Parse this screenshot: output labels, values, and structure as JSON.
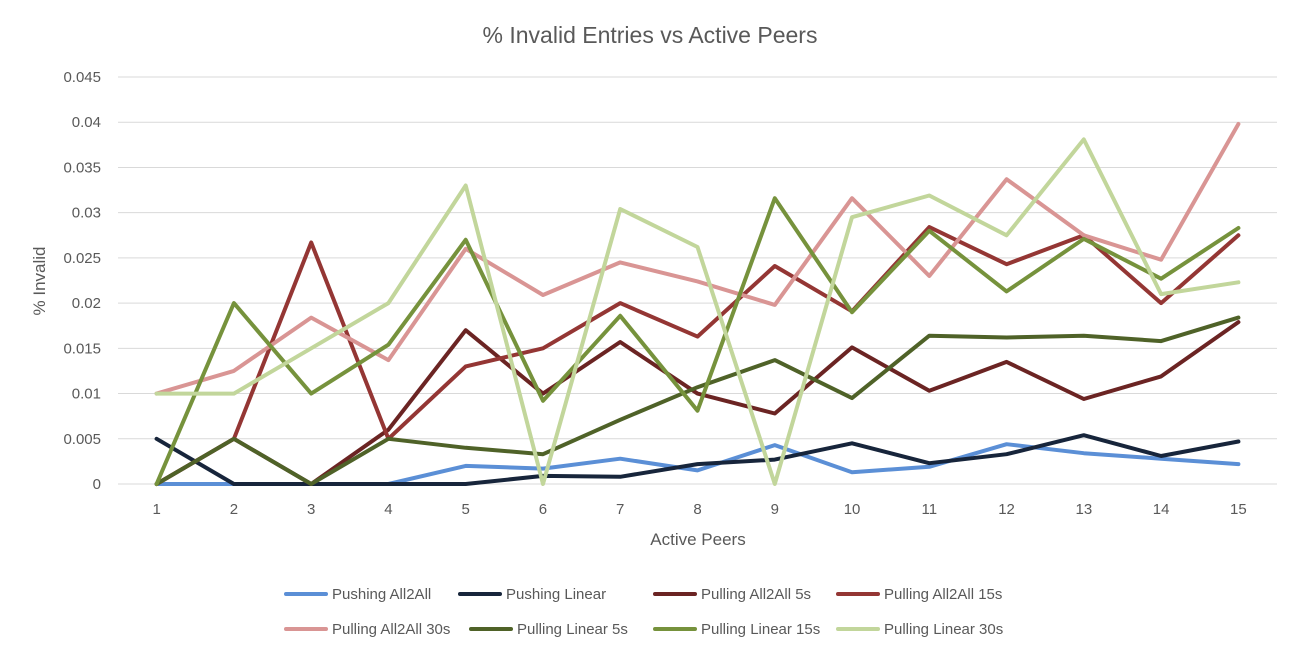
{
  "chart_data": {
    "type": "line",
    "title": "% Invalid Entries vs Active Peers",
    "xlabel": "Active Peers",
    "ylabel": "% Invalid",
    "x": [
      1,
      2,
      3,
      4,
      5,
      6,
      7,
      8,
      9,
      10,
      11,
      12,
      13,
      14,
      15
    ],
    "ylim": [
      0,
      0.045
    ],
    "yticks": [
      0,
      0.005,
      0.01,
      0.015,
      0.02,
      0.025,
      0.03,
      0.035,
      0.04,
      0.045
    ],
    "ytick_labels": [
      "0",
      "0.005",
      "0.01",
      "0.015",
      "0.02",
      "0.025",
      "0.03",
      "0.035",
      "0.04",
      "0.045"
    ],
    "grid": true,
    "legend_position": "bottom",
    "series": [
      {
        "name": "Pushing All2All",
        "color": "#5b8fd6",
        "values": [
          0,
          0,
          0,
          0,
          0.002,
          0.0017,
          0.0028,
          0.0015,
          0.0043,
          0.0013,
          0.0019,
          0.0044,
          0.0034,
          0.0028,
          0.0022
        ]
      },
      {
        "name": "Pushing Linear",
        "color": "#17253b",
        "values": [
          0.005,
          0,
          0,
          0,
          0,
          0.0009,
          0.0008,
          0.0022,
          0.0027,
          0.0045,
          0.0023,
          0.0033,
          0.0054,
          0.0031,
          0.0047
        ]
      },
      {
        "name": "Pulling All2All 5s",
        "color": "#6b2423",
        "values": [
          0,
          0.005,
          0,
          0.006,
          0.017,
          0.01,
          0.0157,
          0.01,
          0.0078,
          0.0151,
          0.0103,
          0.0135,
          0.0094,
          0.0119,
          0.0179
        ]
      },
      {
        "name": "Pulling All2All 15s",
        "color": "#943634",
        "values": [
          0,
          0.005,
          0.0267,
          0.005,
          0.013,
          0.015,
          0.02,
          0.0163,
          0.0241,
          0.0191,
          0.0284,
          0.0243,
          0.0275,
          0.02,
          0.0275
        ]
      },
      {
        "name": "Pulling All2All 30s",
        "color": "#d99594",
        "values": [
          0.01,
          0.0125,
          0.0184,
          0.0137,
          0.026,
          0.0209,
          0.0245,
          0.0224,
          0.0198,
          0.0316,
          0.023,
          0.0337,
          0.0275,
          0.0248,
          0.0398
        ]
      },
      {
        "name": "Pulling Linear 5s",
        "color": "#4f6228",
        "values": [
          0,
          0.005,
          0,
          0.005,
          0.004,
          0.0033,
          0.0071,
          0.0107,
          0.0137,
          0.0095,
          0.0164,
          0.0162,
          0.0164,
          0.0158,
          0.0184
        ]
      },
      {
        "name": "Pulling Linear 15s",
        "color": "#76923c",
        "values": [
          0,
          0.02,
          0.01,
          0.0154,
          0.027,
          0.0092,
          0.0186,
          0.0081,
          0.0316,
          0.019,
          0.028,
          0.0213,
          0.0271,
          0.0227,
          0.0283
        ]
      },
      {
        "name": "Pulling Linear 30s",
        "color": "#c2d69b",
        "values": [
          0.01,
          0.01,
          0.015,
          0.02,
          0.033,
          0,
          0.0304,
          0.0262,
          0,
          0.0295,
          0.0319,
          0.0275,
          0.0381,
          0.021,
          0.0223
        ]
      }
    ]
  }
}
